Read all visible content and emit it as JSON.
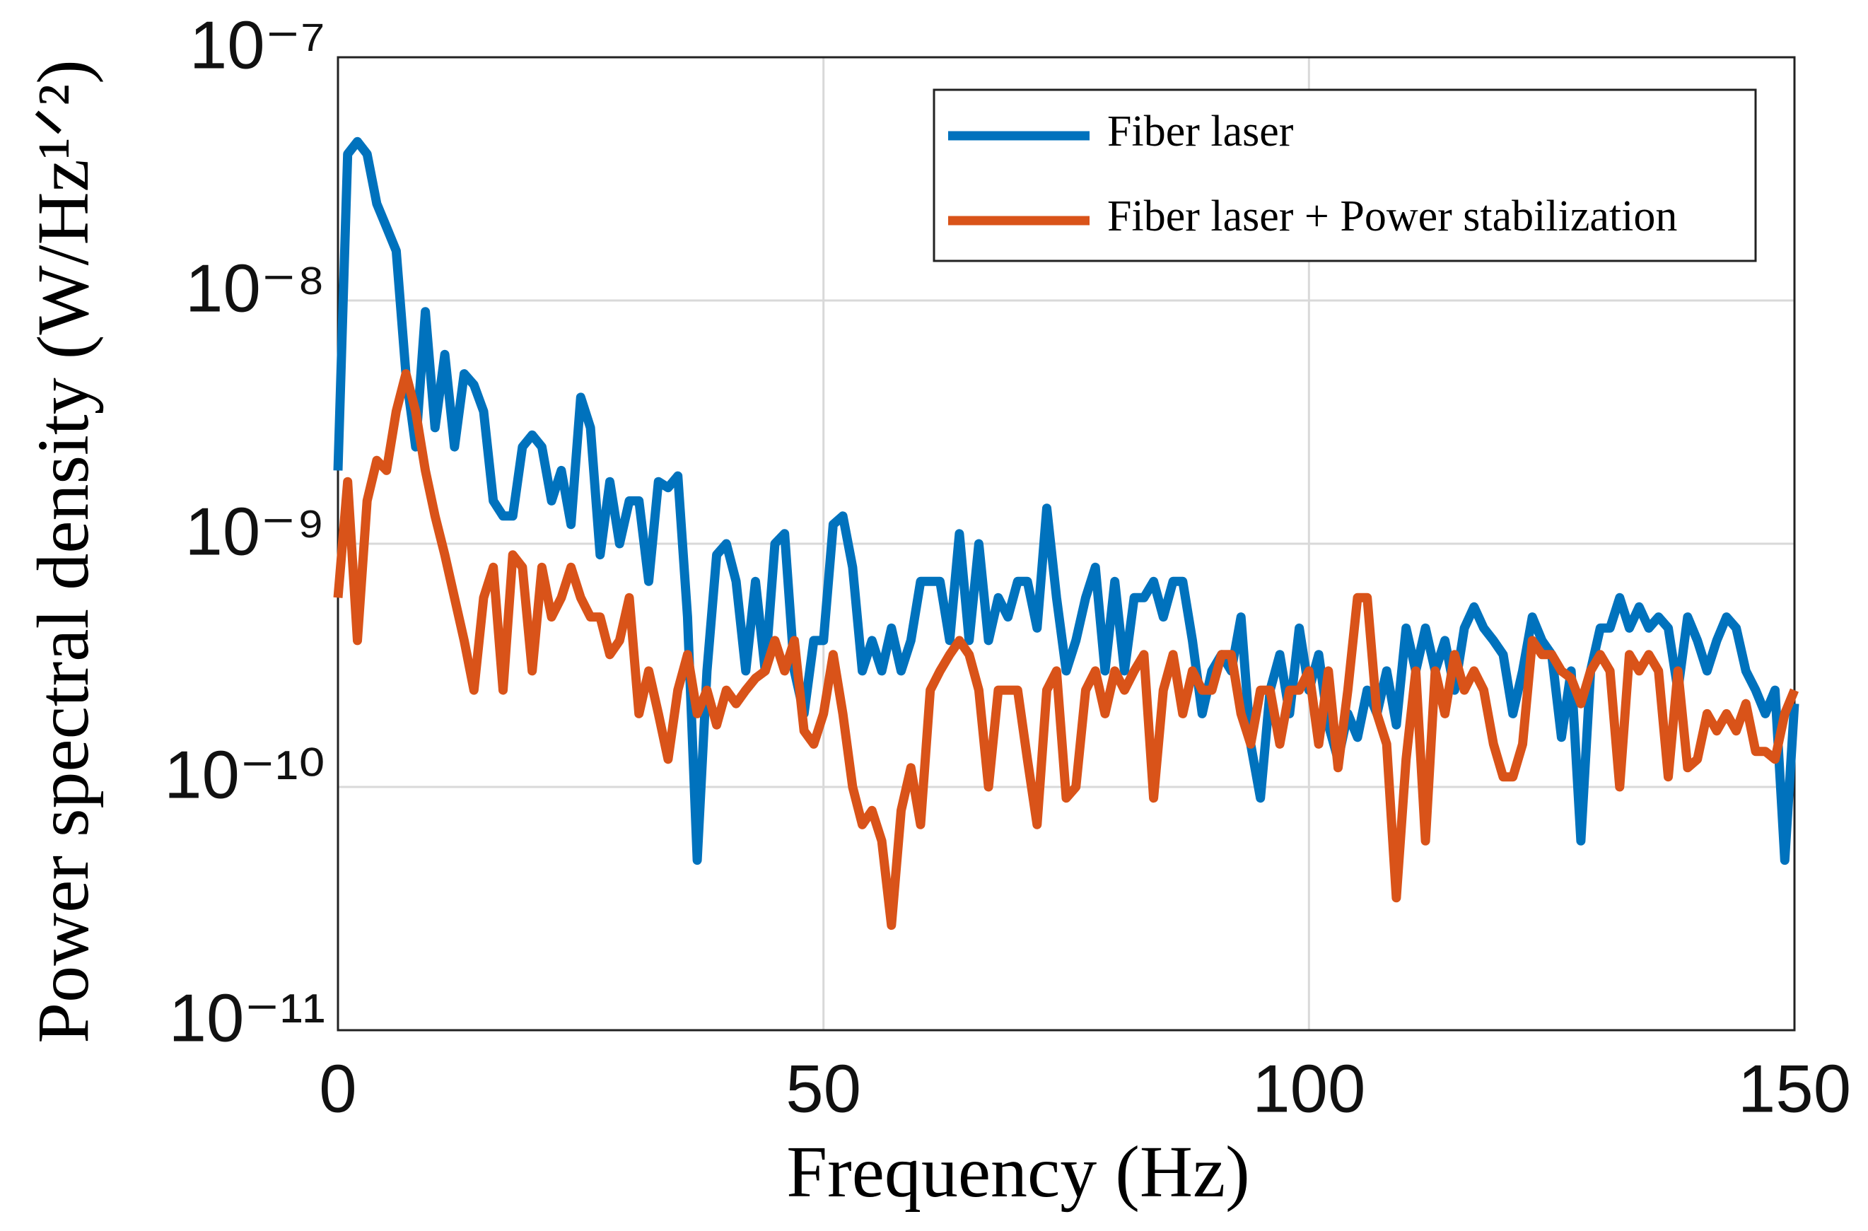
{
  "chart_data": {
    "type": "line",
    "xlabel": "Frequency (Hz)",
    "ylabel": "Power spectral density (W/Hz¹ᐟ²)",
    "x": [
      0,
      1,
      2,
      3,
      4,
      5,
      6,
      7,
      8,
      9,
      10,
      11,
      12,
      13,
      14,
      15,
      16,
      17,
      18,
      19,
      20,
      21,
      22,
      23,
      24,
      25,
      26,
      27,
      28,
      29,
      30,
      31,
      32,
      33,
      34,
      35,
      36,
      37,
      38,
      39,
      40,
      41,
      42,
      43,
      44,
      45,
      46,
      47,
      48,
      49,
      50,
      51,
      52,
      53,
      54,
      55,
      56,
      57,
      58,
      59,
      60,
      61,
      62,
      63,
      64,
      65,
      66,
      67,
      68,
      69,
      70,
      71,
      72,
      73,
      74,
      75,
      76,
      77,
      78,
      79,
      80,
      81,
      82,
      83,
      84,
      85,
      86,
      87,
      88,
      89,
      90,
      91,
      92,
      93,
      94,
      95,
      96,
      97,
      98,
      99,
      100,
      101,
      102,
      103,
      104,
      105,
      106,
      107,
      108,
      109,
      110,
      111,
      112,
      113,
      114,
      115,
      116,
      117,
      118,
      119,
      120,
      121,
      122,
      123,
      124,
      125,
      126,
      127,
      128,
      129,
      130,
      131,
      132,
      133,
      134,
      135,
      136,
      137,
      138,
      139,
      140,
      141,
      142,
      143,
      144,
      145,
      146,
      147,
      148,
      149,
      150
    ],
    "series": [
      {
        "name": "Fiber laser",
        "color": "#0072bd",
        "values": [
          2e-09,
          4e-08,
          4.5e-08,
          4e-08,
          2.5e-08,
          2e-08,
          1.6e-08,
          5e-09,
          2.5e-09,
          9e-09,
          3e-09,
          6e-09,
          2.5e-09,
          5e-09,
          4.5e-09,
          3.5e-09,
          1.5e-09,
          1.3e-09,
          1.3e-09,
          2.5e-09,
          2.8e-09,
          2.5e-09,
          1.5e-09,
          2e-09,
          1.2e-09,
          4e-09,
          3e-09,
          9e-10,
          1.8e-09,
          1e-09,
          1.5e-09,
          1.5e-09,
          7e-10,
          1.8e-09,
          1.7e-09,
          1.9e-09,
          5e-10,
          5e-11,
          3e-10,
          9e-10,
          1e-09,
          7e-10,
          3e-10,
          7e-10,
          3e-10,
          1e-09,
          1.1e-09,
          3e-10,
          2e-10,
          4e-10,
          4e-10,
          1.2e-09,
          1.3e-09,
          8e-10,
          3e-10,
          4e-10,
          3e-10,
          4.5e-10,
          3e-10,
          4e-10,
          7e-10,
          7e-10,
          7e-10,
          4e-10,
          1.1e-09,
          4e-10,
          1e-09,
          4e-10,
          6e-10,
          5e-10,
          7e-10,
          7e-10,
          4.5e-10,
          1.4e-09,
          6e-10,
          3e-10,
          4e-10,
          6e-10,
          8e-10,
          3e-10,
          7e-10,
          3e-10,
          6e-10,
          6e-10,
          7e-10,
          5e-10,
          7e-10,
          7e-10,
          4e-10,
          2e-10,
          3e-10,
          3.5e-10,
          3e-10,
          5e-10,
          1.5e-10,
          9e-11,
          2.5e-10,
          3.5e-10,
          2e-10,
          4.5e-10,
          2.5e-10,
          3.5e-10,
          1.8e-10,
          1.3e-10,
          2e-10,
          1.6e-10,
          2.5e-10,
          2e-10,
          3e-10,
          1.8e-10,
          4.5e-10,
          3e-10,
          4.5e-10,
          3e-10,
          4e-10,
          2.5e-10,
          4.5e-10,
          5.5e-10,
          4.5e-10,
          4e-10,
          3.5e-10,
          2e-10,
          3e-10,
          5e-10,
          4e-10,
          3.5e-10,
          1.6e-10,
          3e-10,
          6e-11,
          3e-10,
          4.5e-10,
          4.5e-10,
          6e-10,
          4.5e-10,
          5.5e-10,
          4.5e-10,
          5e-10,
          4.5e-10,
          2.5e-10,
          5e-10,
          4e-10,
          3e-10,
          4e-10,
          5e-10,
          4.5e-10,
          3e-10,
          2.5e-10,
          2e-10,
          2.5e-10,
          5e-11,
          2.2e-10
        ]
      },
      {
        "name": "Fiber laser + Power stabilization",
        "color": "#d95319",
        "values": [
          6e-10,
          1.8e-09,
          4e-10,
          1.5e-09,
          2.2e-09,
          2e-09,
          3.5e-09,
          5e-09,
          3.5e-09,
          2e-09,
          1.3e-09,
          9e-10,
          6e-10,
          4e-10,
          2.5e-10,
          6e-10,
          8e-10,
          2.5e-10,
          9e-10,
          8e-10,
          3e-10,
          8e-10,
          5e-10,
          6e-10,
          8e-10,
          6e-10,
          5e-10,
          5e-10,
          3.5e-10,
          4e-10,
          6e-10,
          2e-10,
          3e-10,
          2e-10,
          1.3e-10,
          2.5e-10,
          3.5e-10,
          2e-10,
          2.5e-10,
          1.8e-10,
          2.5e-10,
          2.2e-10,
          2.5e-10,
          2.8e-10,
          3e-10,
          4e-10,
          3e-10,
          4e-10,
          1.7e-10,
          1.5e-10,
          2e-10,
          3.5e-10,
          2e-10,
          1e-10,
          7e-11,
          8e-11,
          6e-11,
          2.7e-11,
          8e-11,
          1.2e-10,
          7e-11,
          2.5e-10,
          3e-10,
          3.5e-10,
          4e-10,
          3.5e-10,
          2.5e-10,
          1e-10,
          2.5e-10,
          2.5e-10,
          2.5e-10,
          1.3e-10,
          7e-11,
          2.5e-10,
          3e-10,
          9e-11,
          1e-10,
          2.5e-10,
          3e-10,
          2e-10,
          3e-10,
          2.5e-10,
          3e-10,
          3.5e-10,
          9e-11,
          2.5e-10,
          3.5e-10,
          2e-10,
          3e-10,
          2.5e-10,
          2.5e-10,
          3.5e-10,
          3.5e-10,
          2e-10,
          1.5e-10,
          2.5e-10,
          2.5e-10,
          1.5e-10,
          2.5e-10,
          2.5e-10,
          3e-10,
          1.5e-10,
          3e-10,
          1.2e-10,
          2.5e-10,
          6e-10,
          6e-10,
          2e-10,
          1.5e-10,
          3.5e-11,
          1.3e-10,
          3e-10,
          6e-11,
          3e-10,
          2e-10,
          3.5e-10,
          2.5e-10,
          3e-10,
          2.5e-10,
          1.5e-10,
          1.1e-10,
          1.1e-10,
          1.5e-10,
          4e-10,
          3.5e-10,
          3.5e-10,
          3e-10,
          2.8e-10,
          2.2e-10,
          3e-10,
          3.5e-10,
          3e-10,
          1e-10,
          3.5e-10,
          3e-10,
          3.5e-10,
          3e-10,
          1.1e-10,
          3e-10,
          1.2e-10,
          1.3e-10,
          2e-10,
          1.7e-10,
          2e-10,
          1.7e-10,
          2.2e-10,
          1.4e-10,
          1.4e-10,
          1.3e-10,
          2e-10,
          2.5e-10
        ]
      }
    ],
    "xlim": [
      0,
      150
    ],
    "xticks": [
      0,
      50,
      100,
      150
    ],
    "ylim": [
      1e-11,
      1e-07
    ],
    "yticks": [
      {
        "value": 1e-11,
        "label": "10⁻¹¹"
      },
      {
        "value": 1e-10,
        "label": "10⁻¹⁰"
      },
      {
        "value": 1e-09,
        "label": "10⁻⁹"
      },
      {
        "value": 1e-08,
        "label": "10⁻⁸"
      },
      {
        "value": 1e-07,
        "label": "10⁻⁷"
      }
    ],
    "ylog": true,
    "grid": true,
    "legend": "upper right"
  }
}
